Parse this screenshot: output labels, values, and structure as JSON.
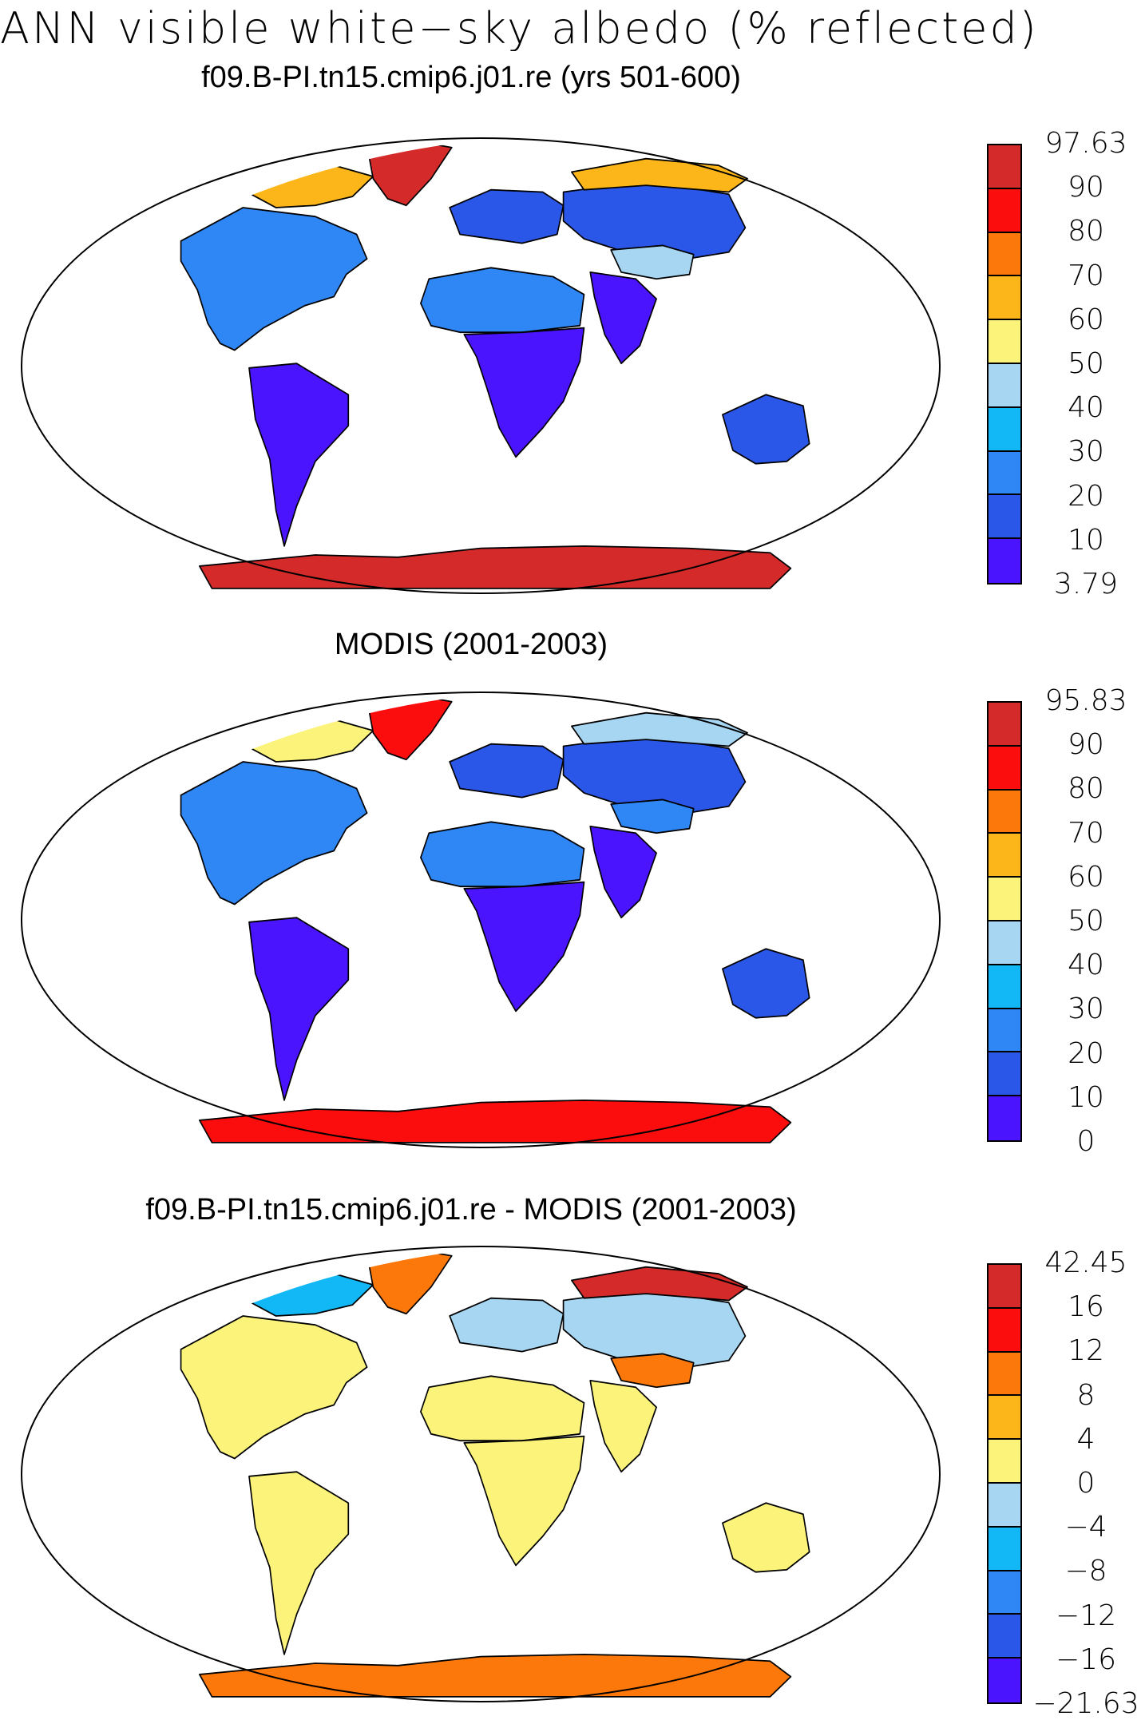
{
  "title": "ANN visible white−sky albedo (% reflected)",
  "colors": {
    "ocean": "#ffffff",
    "coast": "#000000",
    "scale": [
      "#4a14ff",
      "#2b57e8",
      "#2f87f5",
      "#12b8f5",
      "#a6d6f2",
      "#fbf37a",
      "#fcb61a",
      "#fc780a",
      "#fc0d0d",
      "#d42a2a"
    ]
  },
  "panels": [
    {
      "title": "f09.B-PI.tn15.cmip6.j01.re (yrs 501-600)",
      "colorbar_labels": [
        "97.63",
        "90",
        "80",
        "70",
        "60",
        "50",
        "40",
        "30",
        "20",
        "10",
        "3.79"
      ],
      "regions": {
        "north_america": 2,
        "greenland": 9,
        "canadian_arctic": 6,
        "south_america": 0,
        "africa_south": 0,
        "sahara": 2,
        "europe": 1,
        "siberia": 1,
        "arctic_russia": 6,
        "tibet": 4,
        "south_asia": 0,
        "australia": 1,
        "antarctica": 9
      }
    },
    {
      "title": "MODIS (2001-2003)",
      "colorbar_labels": [
        "95.83",
        "90",
        "80",
        "70",
        "60",
        "50",
        "40",
        "30",
        "20",
        "10",
        "0"
      ],
      "regions": {
        "north_america": 2,
        "greenland": 8,
        "canadian_arctic": 5,
        "south_america": 0,
        "africa_south": 0,
        "sahara": 2,
        "europe": 1,
        "siberia": 1,
        "arctic_russia": 4,
        "tibet": 2,
        "south_asia": 0,
        "australia": 1,
        "antarctica": 8
      }
    },
    {
      "title": "f09.B-PI.tn15.cmip6.j01.re - MODIS (2001-2003)",
      "colorbar_labels": [
        "42.45",
        "16",
        "12",
        "8",
        "4",
        "0",
        "−4",
        "−8",
        "−12",
        "−16",
        "−21.63"
      ],
      "regions": {
        "north_america": 5,
        "greenland": 7,
        "canadian_arctic": 3,
        "south_america": 5,
        "africa_south": 5,
        "sahara": 5,
        "europe": 4,
        "siberia": 4,
        "arctic_russia": 9,
        "tibet": 7,
        "south_asia": 5,
        "australia": 5,
        "antarctica": 7
      }
    }
  ]
}
